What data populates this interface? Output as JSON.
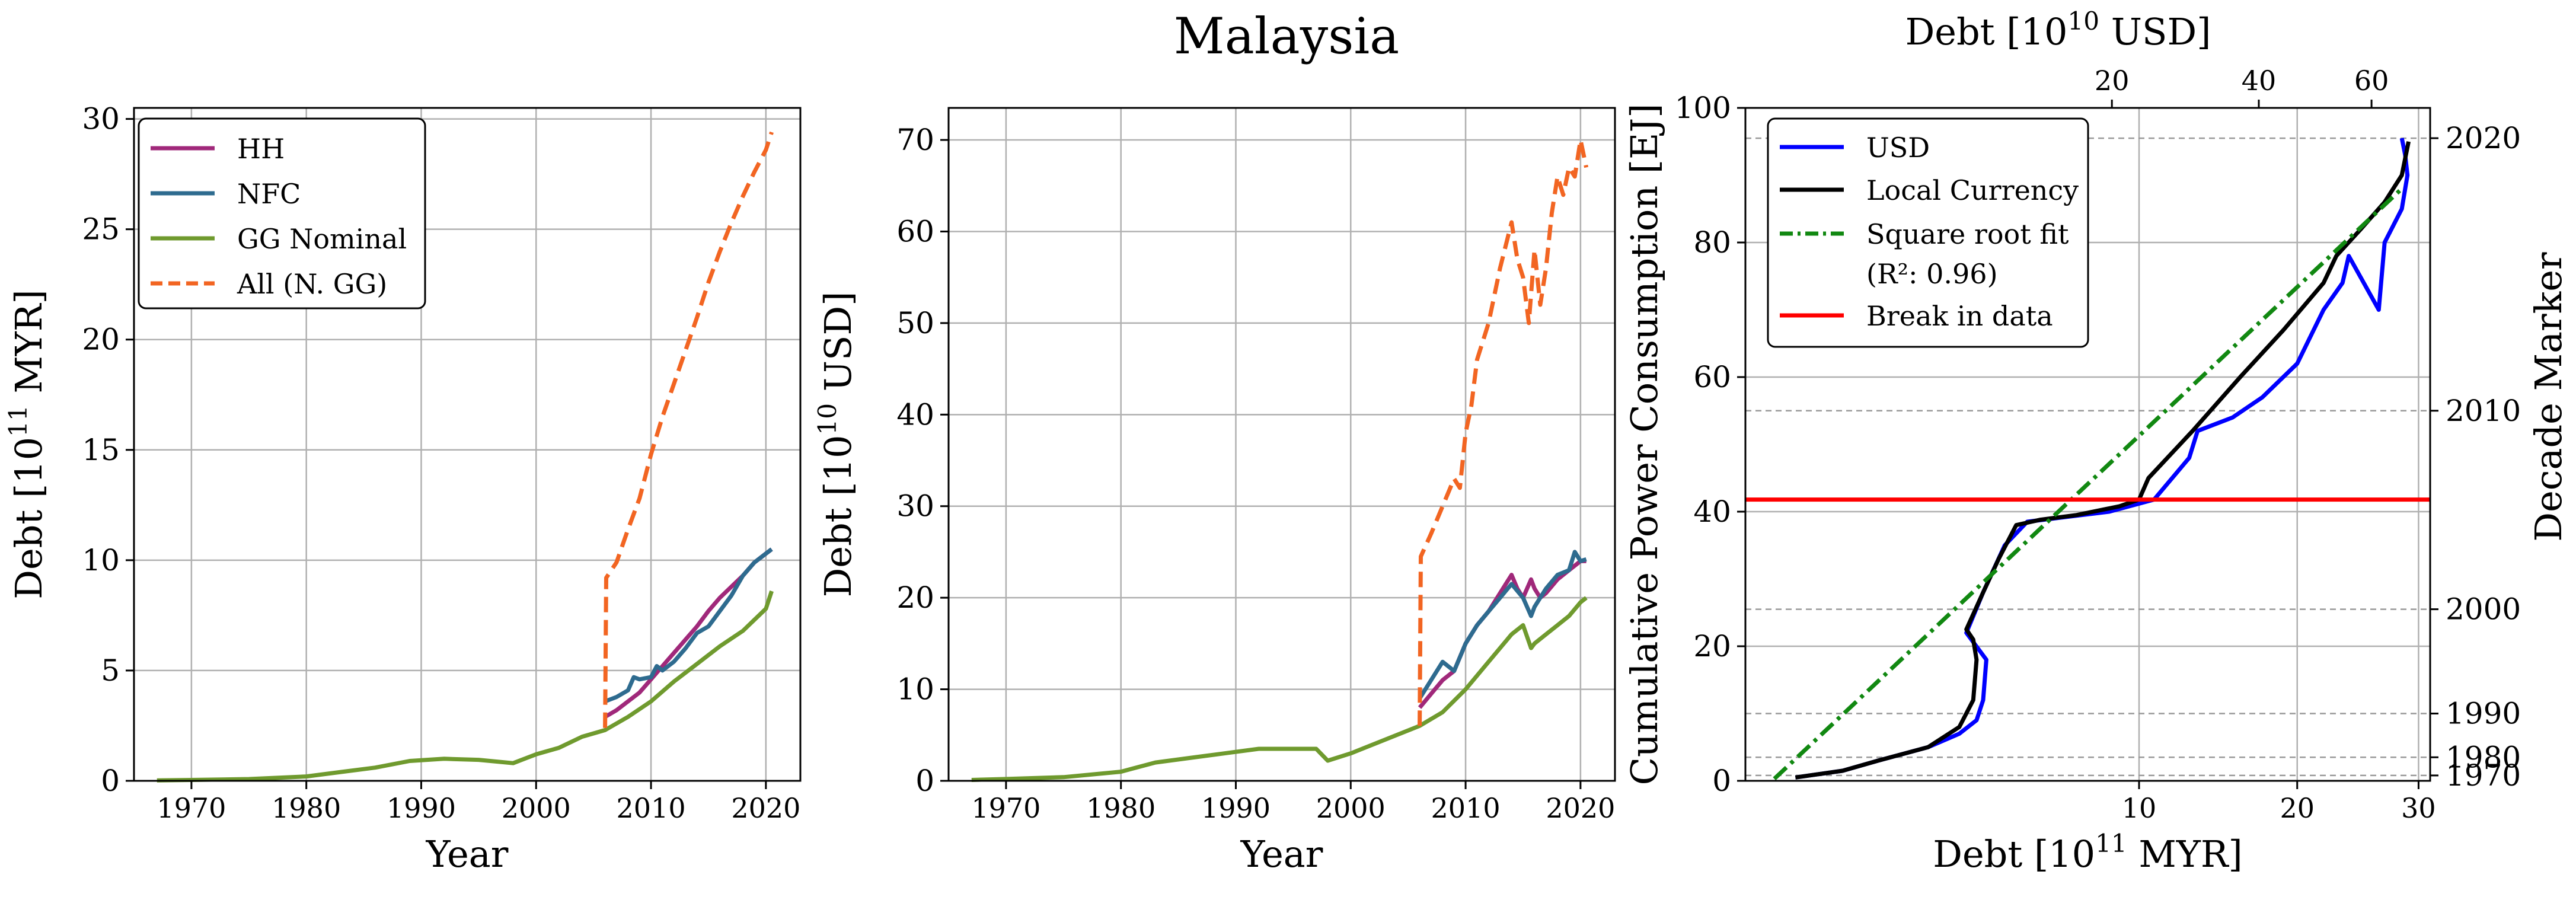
{
  "figure_title": "Malaysia",
  "chart_data": [
    {
      "type": "line",
      "panel": "left",
      "title": "",
      "xlabel": "Year",
      "ylabel": "Debt [10^11 MYR]",
      "xlim": [
        1965,
        2023
      ],
      "ylim": [
        0,
        30.5
      ],
      "xticks": [
        1970,
        1980,
        1990,
        2000,
        2010,
        2020
      ],
      "yticks": [
        0,
        5,
        10,
        15,
        20,
        25,
        30
      ],
      "grid": true,
      "legend_position": "top-left",
      "series": [
        {
          "name": "HH",
          "color": "#a0287a",
          "dash": "solid",
          "x": [
            2006,
            2007,
            2008,
            2009,
            2010,
            2011,
            2012,
            2013,
            2014,
            2015,
            2016,
            2017,
            2018,
            2019,
            2020,
            2020.5
          ],
          "y": [
            2.9,
            3.2,
            3.6,
            4.0,
            4.6,
            5.2,
            5.8,
            6.4,
            7.0,
            7.7,
            8.3,
            8.8,
            9.3,
            9.9,
            10.3,
            10.5
          ]
        },
        {
          "name": "NFC",
          "color": "#2e6b8f",
          "dash": "solid",
          "x": [
            2006,
            2007,
            2008,
            2008.5,
            2009,
            2010,
            2010.5,
            2011,
            2012,
            2013,
            2014,
            2015,
            2016,
            2017,
            2018,
            2019,
            2020,
            2020.5
          ],
          "y": [
            3.6,
            3.8,
            4.1,
            4.7,
            4.6,
            4.7,
            5.2,
            5.0,
            5.4,
            6.0,
            6.7,
            7.0,
            7.7,
            8.4,
            9.3,
            9.9,
            10.3,
            10.5
          ]
        },
        {
          "name": "GG Nominal",
          "color": "#6f9a2e",
          "dash": "solid",
          "x": [
            1967,
            1970,
            1975,
            1980,
            1983,
            1986,
            1989,
            1992,
            1995,
            1998,
            2000,
            2002,
            2004,
            2006,
            2008,
            2010,
            2012,
            2014,
            2016,
            2018,
            2020,
            2020.5
          ],
          "y": [
            0.02,
            0.04,
            0.08,
            0.2,
            0.4,
            0.6,
            0.9,
            1.0,
            0.95,
            0.8,
            1.2,
            1.5,
            2.0,
            2.3,
            2.9,
            3.6,
            4.5,
            5.3,
            6.1,
            6.8,
            7.8,
            8.6
          ]
        },
        {
          "name": "All (N. GG)",
          "color": "#f26522",
          "dash": "dashed",
          "x": [
            2006,
            2006.1,
            2007,
            2008,
            2009,
            2010,
            2011,
            2012,
            2013,
            2014,
            2015,
            2016,
            2017,
            2018,
            2019,
            2020,
            2020.5
          ],
          "y": [
            2.4,
            9.2,
            9.9,
            11.4,
            12.8,
            14.8,
            16.5,
            18.0,
            19.5,
            21.0,
            22.6,
            24.0,
            25.3,
            26.5,
            27.6,
            28.6,
            29.4
          ]
        }
      ]
    },
    {
      "type": "line",
      "panel": "middle",
      "title": "",
      "xlabel": "Year",
      "ylabel": "Debt [10^10 USD]",
      "xlim": [
        1965,
        2023
      ],
      "ylim": [
        0,
        73.5
      ],
      "xticks": [
        1970,
        1980,
        1990,
        2000,
        2010,
        2020
      ],
      "yticks": [
        0,
        10,
        20,
        30,
        40,
        50,
        60,
        70
      ],
      "grid": true,
      "series": [
        {
          "name": "HH",
          "color": "#a0287a",
          "dash": "solid",
          "x": [
            2006,
            2007,
            2008,
            2009,
            2010,
            2011,
            2012,
            2013,
            2014,
            2014.5,
            2015,
            2015.7,
            2016,
            2016.5,
            2017,
            2018,
            2019,
            2020,
            2020.5
          ],
          "y": [
            8,
            9.5,
            11,
            12,
            15,
            17,
            18.5,
            20.5,
            22.5,
            21,
            20,
            22,
            21,
            20,
            20.5,
            22,
            23,
            24,
            24
          ]
        },
        {
          "name": "NFC",
          "color": "#2e6b8f",
          "dash": "solid",
          "x": [
            2006,
            2007,
            2008,
            2009,
            2010,
            2011,
            2012,
            2013,
            2014,
            2015,
            2015.7,
            2016,
            2017,
            2018,
            2019,
            2019.5,
            2020,
            2020.5
          ],
          "y": [
            9,
            11,
            13,
            12,
            15,
            17,
            18.5,
            20,
            21.5,
            20,
            18,
            19,
            21,
            22.5,
            23,
            25,
            24,
            24.2
          ]
        },
        {
          "name": "GG Nominal",
          "color": "#6f9a2e",
          "dash": "solid",
          "x": [
            1967,
            1970,
            1975,
            1980,
            1983,
            1986,
            1989,
            1992,
            1995,
            1997,
            1998,
            2000,
            2002,
            2004,
            2006,
            2008,
            2010,
            2012,
            2014,
            2015,
            2015.7,
            2016,
            2017,
            2018,
            2019,
            2020,
            2020.5
          ],
          "y": [
            0.1,
            0.2,
            0.4,
            1,
            2,
            2.5,
            3,
            3.5,
            3.5,
            3.5,
            2.2,
            3,
            4,
            5,
            6,
            7.5,
            10,
            13,
            16,
            17,
            14.5,
            15,
            16,
            17,
            18,
            19.5,
            20
          ]
        },
        {
          "name": "All (N. GG)",
          "color": "#f26522",
          "dash": "dashed",
          "x": [
            2006,
            2006.1,
            2007,
            2008,
            2009,
            2009.5,
            2010,
            2010.5,
            2011,
            2012,
            2013,
            2014,
            2014.5,
            2015,
            2015.5,
            2016,
            2016.5,
            2017,
            2017.5,
            2018,
            2018.5,
            2019,
            2019.5,
            2020,
            2020.5
          ],
          "y": [
            6,
            24.5,
            27,
            30,
            33,
            32,
            38,
            41,
            46,
            50,
            56,
            61,
            57,
            55,
            50,
            58,
            52,
            56,
            62,
            66,
            64,
            67,
            66,
            70,
            67
          ]
        }
      ]
    },
    {
      "type": "line",
      "panel": "right",
      "title": "",
      "xlabel": "Debt [10^11 MYR]",
      "ylabel": "Cumulative Power Consumption [EJ]",
      "top_xlabel": "Debt [10^10 USD]",
      "right_ylabel": "Decade Marker",
      "x_scale": "sqrt",
      "xlim": [
        0,
        31
      ],
      "ylim": [
        0,
        100
      ],
      "xticks": [
        10,
        20,
        30
      ],
      "yticks": [
        0,
        20,
        40,
        60,
        80,
        100
      ],
      "top_xticks": [
        20,
        40,
        60
      ],
      "top_xlim": [
        0,
        72
      ],
      "decade_markers": [
        {
          "label": "1970",
          "y": 0.8
        },
        {
          "label": "1980",
          "y": 3.5
        },
        {
          "label": "1990",
          "y": 10
        },
        {
          "label": "2000",
          "y": 25.5
        },
        {
          "label": "2010",
          "y": 55
        },
        {
          "label": "2020",
          "y": 95.5
        }
      ],
      "break_y": 41.8,
      "legend_position": "top-left",
      "series": [
        {
          "name": "USD",
          "color": "#0000ff",
          "dash": "solid",
          "x": [
            0.1,
            0.5,
            1.0,
            2.0,
            2.8,
            3.3,
            3.5,
            3.6,
            3.0,
            3.5,
            4.2,
            5.0,
            6.5,
            8.5,
            10.8,
            12.8,
            13.3,
            15.5,
            17.5,
            20.0,
            22.0,
            23.5,
            24.0,
            26.5,
            27.0,
            28.5,
            29.0,
            28.8,
            28.5
          ],
          "y": [
            0.5,
            1.5,
            3,
            5,
            7,
            9,
            12,
            18,
            22,
            28,
            35,
            38.5,
            39.2,
            40,
            41.8,
            48,
            52,
            54,
            57,
            62,
            70,
            74,
            78,
            70,
            80,
            85,
            90,
            93,
            95.5
          ]
        },
        {
          "name": "Local Currency",
          "color": "#000000",
          "dash": "solid",
          "x": [
            0.1,
            0.5,
            1.0,
            2.0,
            2.8,
            3.2,
            3.3,
            3.2,
            3.0,
            3.5,
            4.0,
            4.6,
            5.5,
            7.0,
            9.0,
            10.0,
            10.5,
            13.0,
            16.0,
            19.0,
            22.0,
            23.0,
            25.0,
            27.0,
            28.5,
            29.1
          ],
          "y": [
            0.5,
            1.5,
            3,
            5,
            8,
            12,
            18,
            21,
            22.5,
            28,
            33,
            38,
            38.8,
            39.5,
            40.8,
            41.8,
            45,
            52,
            60,
            67,
            74,
            78,
            82,
            86,
            90,
            95
          ]
        },
        {
          "name": "Square root fit",
          "name_line2": "(R²: 0.96)",
          "color": "#118811",
          "dash": "dashdot",
          "x": [
            0.02,
            28.5
          ],
          "y": [
            0.3,
            88
          ]
        },
        {
          "name": "Break in data",
          "color": "#ff0000",
          "dash": "solid",
          "x": [
            0,
            31
          ],
          "y": [
            41.8,
            41.8
          ]
        }
      ]
    }
  ]
}
